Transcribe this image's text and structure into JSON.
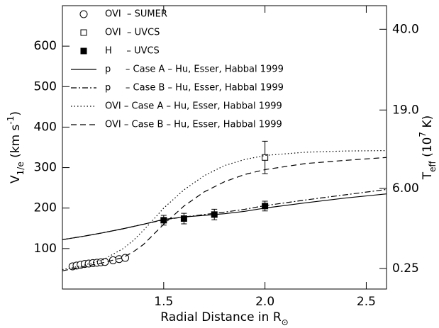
{
  "chart_data": {
    "type": "line",
    "xlabel": [
      {
        "text": "Radial Distance in R"
      },
      {
        "text": "⊙",
        "shift": "sub"
      }
    ],
    "ylabel": [
      {
        "text": "V"
      },
      {
        "text": "1/e",
        "shift": "sub"
      },
      {
        "text": " (km s"
      },
      {
        "text": "-1",
        "shift": "super"
      },
      {
        "text": ")"
      }
    ],
    "y2label": [
      {
        "text": "T"
      },
      {
        "text": "eff",
        "shift": "sub"
      },
      {
        "text": " (10"
      },
      {
        "text": "7",
        "shift": "super"
      },
      {
        "text": " K)"
      }
    ],
    "xlim": [
      1.0,
      2.6
    ],
    "xticks": [
      1.5,
      {
        "value": 2,
        "label": "2.0"
      },
      2.5
    ],
    "ylim": [
      0,
      700
    ],
    "yticks": [
      100,
      200,
      300,
      400,
      500,
      600
    ],
    "y2lim": [
      0,
      47.6
    ],
    "y2scale": "sqrt",
    "y2ticks": [
      0.25,
      {
        "value": 6,
        "label": "6.00"
      },
      {
        "value": 19,
        "label": "19.0"
      },
      {
        "value": 40,
        "label": "40.0"
      }
    ],
    "series": [
      {
        "name": "OVI  – SUMER",
        "type": "scatter",
        "marker": "open-circle",
        "color": "#000",
        "x": [
          1.05,
          1.07,
          1.09,
          1.11,
          1.13,
          1.15,
          1.17,
          1.19,
          1.21,
          1.25,
          1.28,
          1.31
        ],
        "values": [
          56,
          58,
          60,
          62,
          63,
          64,
          65,
          66,
          67,
          71,
          74,
          77
        ]
      },
      {
        "name": "OVI  – UVCS",
        "type": "scatter",
        "marker": "open-square",
        "color": "#000",
        "x": [
          2.0
        ],
        "values": [
          325
        ],
        "errors": [
          40
        ]
      },
      {
        "name": "H     – UVCS",
        "type": "scatter",
        "marker": "filled-square",
        "color": "#000",
        "x": [
          1.5,
          1.6,
          1.75,
          2.0
        ],
        "values": [
          170,
          174,
          184,
          205
        ],
        "errors": [
          12,
          13,
          13,
          12
        ]
      },
      {
        "name": "p     – Case A – Hu, Esser, Habbal 1999",
        "type": "line",
        "dash": "solid",
        "color": "#000",
        "x": [
          1.0,
          1.1,
          1.2,
          1.3,
          1.4,
          1.5,
          1.6,
          1.7,
          1.8,
          1.9,
          2.0,
          2.2,
          2.4,
          2.6
        ],
        "values": [
          122,
          130,
          139,
          149,
          160,
          172,
          178,
          182,
          186,
          192,
          200,
          213,
          225,
          235
        ]
      },
      {
        "name": "p     – Case B – Hu, Esser, Habbal 1999",
        "type": "line",
        "dash": "dashdot",
        "color": "#000",
        "x": [
          1.0,
          1.1,
          1.2,
          1.3,
          1.4,
          1.5,
          1.6,
          1.7,
          1.8,
          1.9,
          2.0,
          2.2,
          2.4,
          2.6
        ],
        "values": [
          122,
          130,
          139,
          149,
          160,
          171,
          178,
          184,
          190,
          197,
          206,
          220,
          233,
          246
        ]
      },
      {
        "name": "OVI – Case A – Hu, Esser, Habbal 1999",
        "type": "line",
        "dash": "dotted",
        "color": "#000",
        "x": [
          1.0,
          1.1,
          1.2,
          1.3,
          1.35,
          1.4,
          1.45,
          1.5,
          1.6,
          1.7,
          1.8,
          1.9,
          2.0,
          2.2,
          2.4,
          2.6
        ],
        "values": [
          48,
          58,
          72,
          100,
          120,
          145,
          172,
          200,
          245,
          280,
          305,
          320,
          330,
          338,
          341,
          342
        ]
      },
      {
        "name": "OVI – Case B – Hu, Esser, Habbal 1999",
        "type": "line",
        "dash": "dashed",
        "color": "#000",
        "x": [
          1.0,
          1.1,
          1.2,
          1.3,
          1.35,
          1.4,
          1.45,
          1.5,
          1.6,
          1.7,
          1.8,
          1.9,
          2.0,
          2.2,
          2.4,
          2.6
        ],
        "values": [
          45,
          55,
          65,
          78,
          92,
          110,
          135,
          160,
          205,
          240,
          265,
          283,
          295,
          310,
          318,
          325
        ]
      }
    ]
  }
}
